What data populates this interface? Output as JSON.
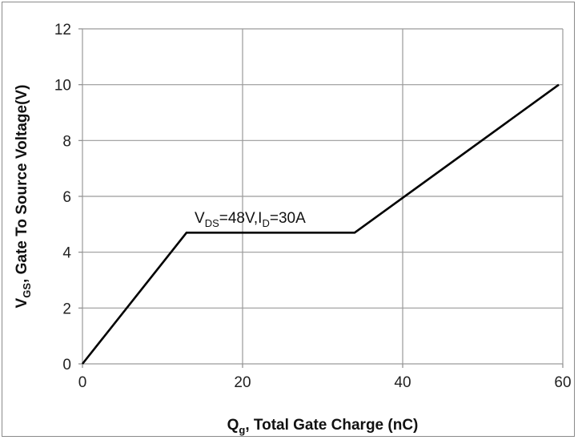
{
  "chart_data": {
    "type": "line",
    "title": "",
    "xlabel": {
      "main": "Q",
      "sub": "g",
      "rest": ", Total Gate Charge (nC)"
    },
    "ylabel": {
      "main": "V",
      "sub": "GS",
      "rest": ",  Gate To  Source Voltage(V)"
    },
    "xlim": [
      0,
      60
    ],
    "ylim": [
      0,
      12
    ],
    "xticks": [
      0,
      20,
      40,
      60
    ],
    "yticks": [
      0,
      2,
      4,
      6,
      8,
      10,
      12
    ],
    "grid": true,
    "series": [
      {
        "x": [
          0,
          13,
          34,
          59.5
        ],
        "y": [
          0,
          4.7,
          4.7,
          10
        ]
      }
    ],
    "annotation": {
      "parts": [
        {
          "text": "V",
          "sub": false
        },
        {
          "text": "DS",
          "sub": true
        },
        {
          "text": "=48V,I",
          "sub": false
        },
        {
          "text": "D",
          "sub": true
        },
        {
          "text": "=30A",
          "sub": false
        }
      ],
      "x": 14,
      "y": 5.05
    }
  }
}
